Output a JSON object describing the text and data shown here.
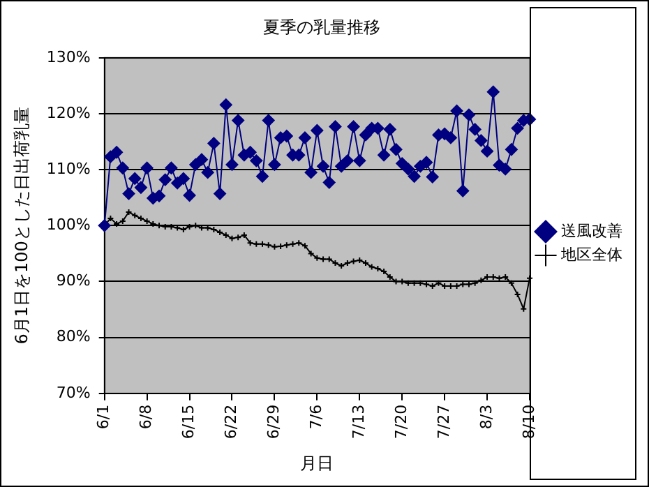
{
  "chart_data": {
    "type": "line",
    "title": "夏季の乳量推移",
    "xlabel": "月日",
    "ylabel": "6月1日を100とした日出荷乳量",
    "categories": [
      "6/1",
      null,
      null,
      null,
      null,
      null,
      null,
      "6/8",
      null,
      null,
      null,
      null,
      null,
      null,
      "6/15",
      null,
      null,
      null,
      null,
      null,
      null,
      "6/22",
      null,
      null,
      null,
      null,
      null,
      null,
      "6/29",
      null,
      null,
      null,
      null,
      null,
      null,
      "7/6",
      null,
      null,
      null,
      null,
      null,
      null,
      "7/13",
      null,
      null,
      null,
      null,
      null,
      null,
      "7/20",
      null,
      null,
      null,
      null,
      null,
      null,
      "7/27",
      null,
      null,
      null,
      null,
      null,
      null,
      "8/3",
      null,
      null,
      null,
      null,
      null,
      null,
      "8/10"
    ],
    "series": [
      {
        "name": "送風改善",
        "color": "#000080",
        "marker": "diamond",
        "values": [
          100,
          112.3,
          113.1,
          110.3,
          105.7,
          108.4,
          106.8,
          110.3,
          104.9,
          105.3,
          108.2,
          110.3,
          107.6,
          108.4,
          105.4,
          110.9,
          111.8,
          109.5,
          114.7,
          105.7,
          121.6,
          110.9,
          118.8,
          112.6,
          113.1,
          111.6,
          108.8,
          118.8,
          110.9,
          115.7,
          116,
          112.6,
          112.6,
          115.7,
          109.5,
          117,
          110.6,
          107.7,
          117.7,
          110.6,
          111.6,
          117.7,
          111.6,
          116.2,
          117.4,
          117.4,
          112.6,
          117.2,
          113.6,
          111.1,
          110.1,
          108.8,
          110.6,
          111.3,
          108.7,
          116.2,
          116.4,
          115.7,
          120.5,
          106.2,
          119.8,
          117.2,
          115.2,
          113.3,
          123.9,
          110.8,
          110.1,
          113.6,
          117.4,
          118.8,
          119
        ]
      },
      {
        "name": "地区全体",
        "color": "#000000",
        "marker": "cross",
        "values": [
          100,
          101.3,
          100.3,
          100.8,
          102.4,
          101.8,
          101.3,
          100.8,
          100.3,
          100,
          99.8,
          99.8,
          99.6,
          99.3,
          99.8,
          100,
          99.6,
          99.6,
          99.3,
          98.8,
          98.3,
          97.7,
          97.9,
          98.3,
          96.9,
          96.7,
          96.7,
          96.5,
          96.2,
          96.3,
          96.5,
          96.7,
          96.9,
          96.4,
          95,
          94.2,
          94,
          94,
          93.3,
          92.8,
          93.3,
          93.6,
          93.8,
          93.3,
          92.6,
          92.3,
          91.8,
          90.8,
          90,
          90,
          89.7,
          89.7,
          89.7,
          89.5,
          89.2,
          89.7,
          89.2,
          89.2,
          89.2,
          89.5,
          89.5,
          89.7,
          90.2,
          90.8,
          90.8,
          90.6,
          90.8,
          89.7,
          87.7,
          85.1,
          90.6
        ]
      }
    ],
    "ylim": [
      70,
      130
    ],
    "yticks": [
      {
        "value": 70,
        "label": "70%"
      },
      {
        "value": 80,
        "label": "80%"
      },
      {
        "value": 90,
        "label": "90%"
      },
      {
        "value": 100,
        "label": "100%"
      },
      {
        "value": 110,
        "label": "110%"
      },
      {
        "value": 120,
        "label": "120%"
      },
      {
        "value": 130,
        "label": "130%"
      }
    ],
    "grid": "y",
    "legend": "right",
    "line_style": "solid"
  }
}
